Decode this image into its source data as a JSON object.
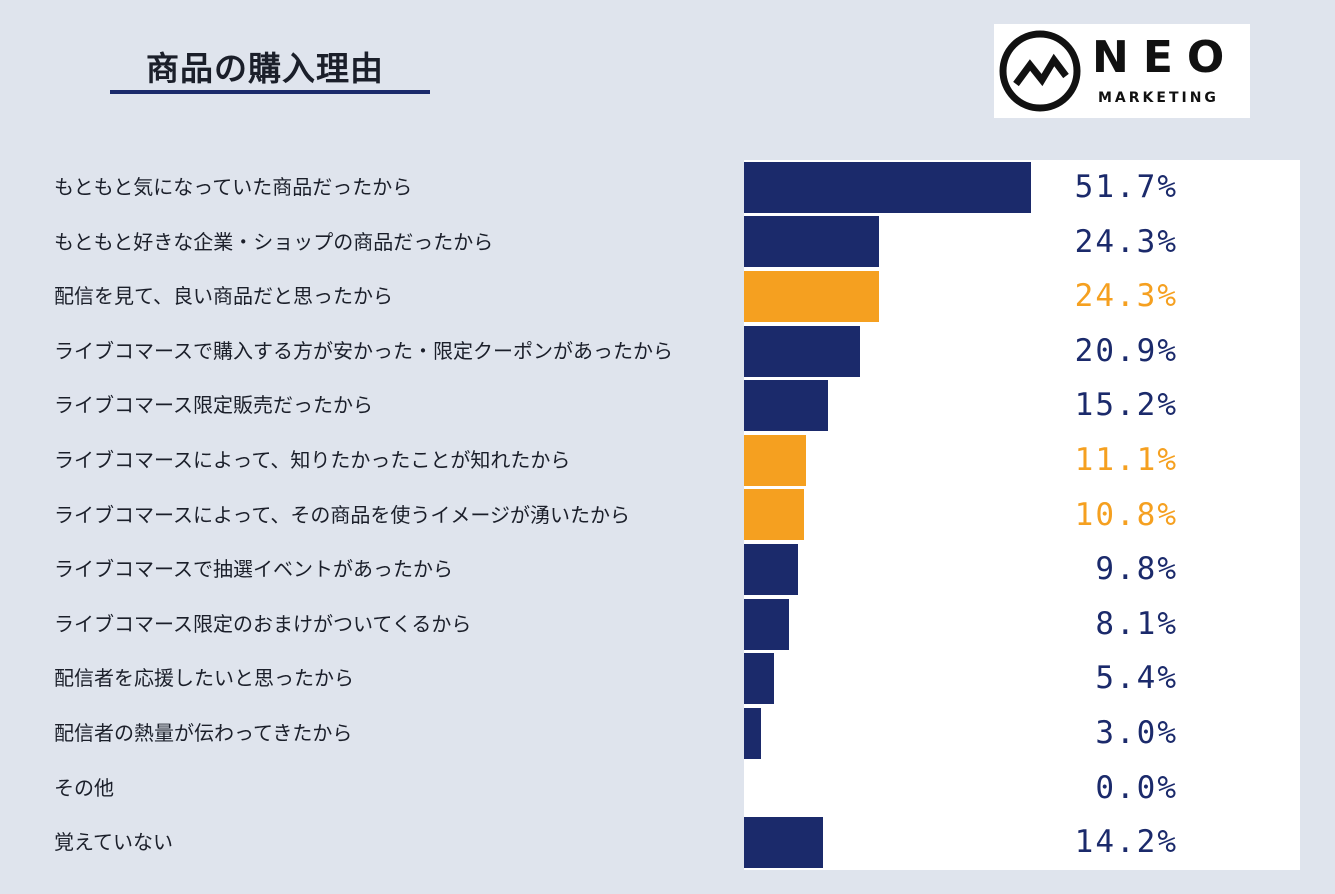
{
  "title": "商品の購入理由",
  "logo": {
    "main": "NEO",
    "sub": "MARKETING"
  },
  "colors": {
    "navy": "#1b2a6b",
    "orange": "#f5a020",
    "background": "#dfe4ed"
  },
  "chart_data": {
    "type": "bar",
    "orientation": "horizontal",
    "title": "商品の購入理由",
    "unit": "%",
    "xlim": [
      0,
      100
    ],
    "categories": [
      "もともと気になっていた商品だったから",
      "もともと好きな企業・ショップの商品だったから",
      "配信を見て、良い商品だと思ったから",
      "ライブコマースで購入する方が安かった・限定クーポンがあったから",
      "ライブコマース限定販売だったから",
      "ライブコマースによって、知りたかったことが知れたから",
      "ライブコマースによって、その商品を使うイメージが湧いたから",
      "ライブコマースで抽選イベントがあったから",
      "ライブコマース限定のおまけがついてくるから",
      "配信者を応援したいと思ったから",
      "配信者の熱量が伝わってきたから",
      "その他",
      "覚えていない"
    ],
    "values": [
      51.7,
      24.3,
      24.3,
      20.9,
      15.2,
      11.1,
      10.8,
      9.8,
      8.1,
      5.4,
      3.0,
      0.0,
      14.2
    ],
    "value_labels": [
      "51.7%",
      "24.3%",
      "24.3%",
      "20.9%",
      "15.2%",
      "11.1%",
      "10.8%",
      "9.8%",
      "8.1%",
      "5.4%",
      "3.0%",
      "0.0%",
      "14.2%"
    ],
    "highlight": [
      false,
      false,
      true,
      false,
      false,
      true,
      true,
      false,
      false,
      false,
      false,
      false,
      false
    ]
  }
}
